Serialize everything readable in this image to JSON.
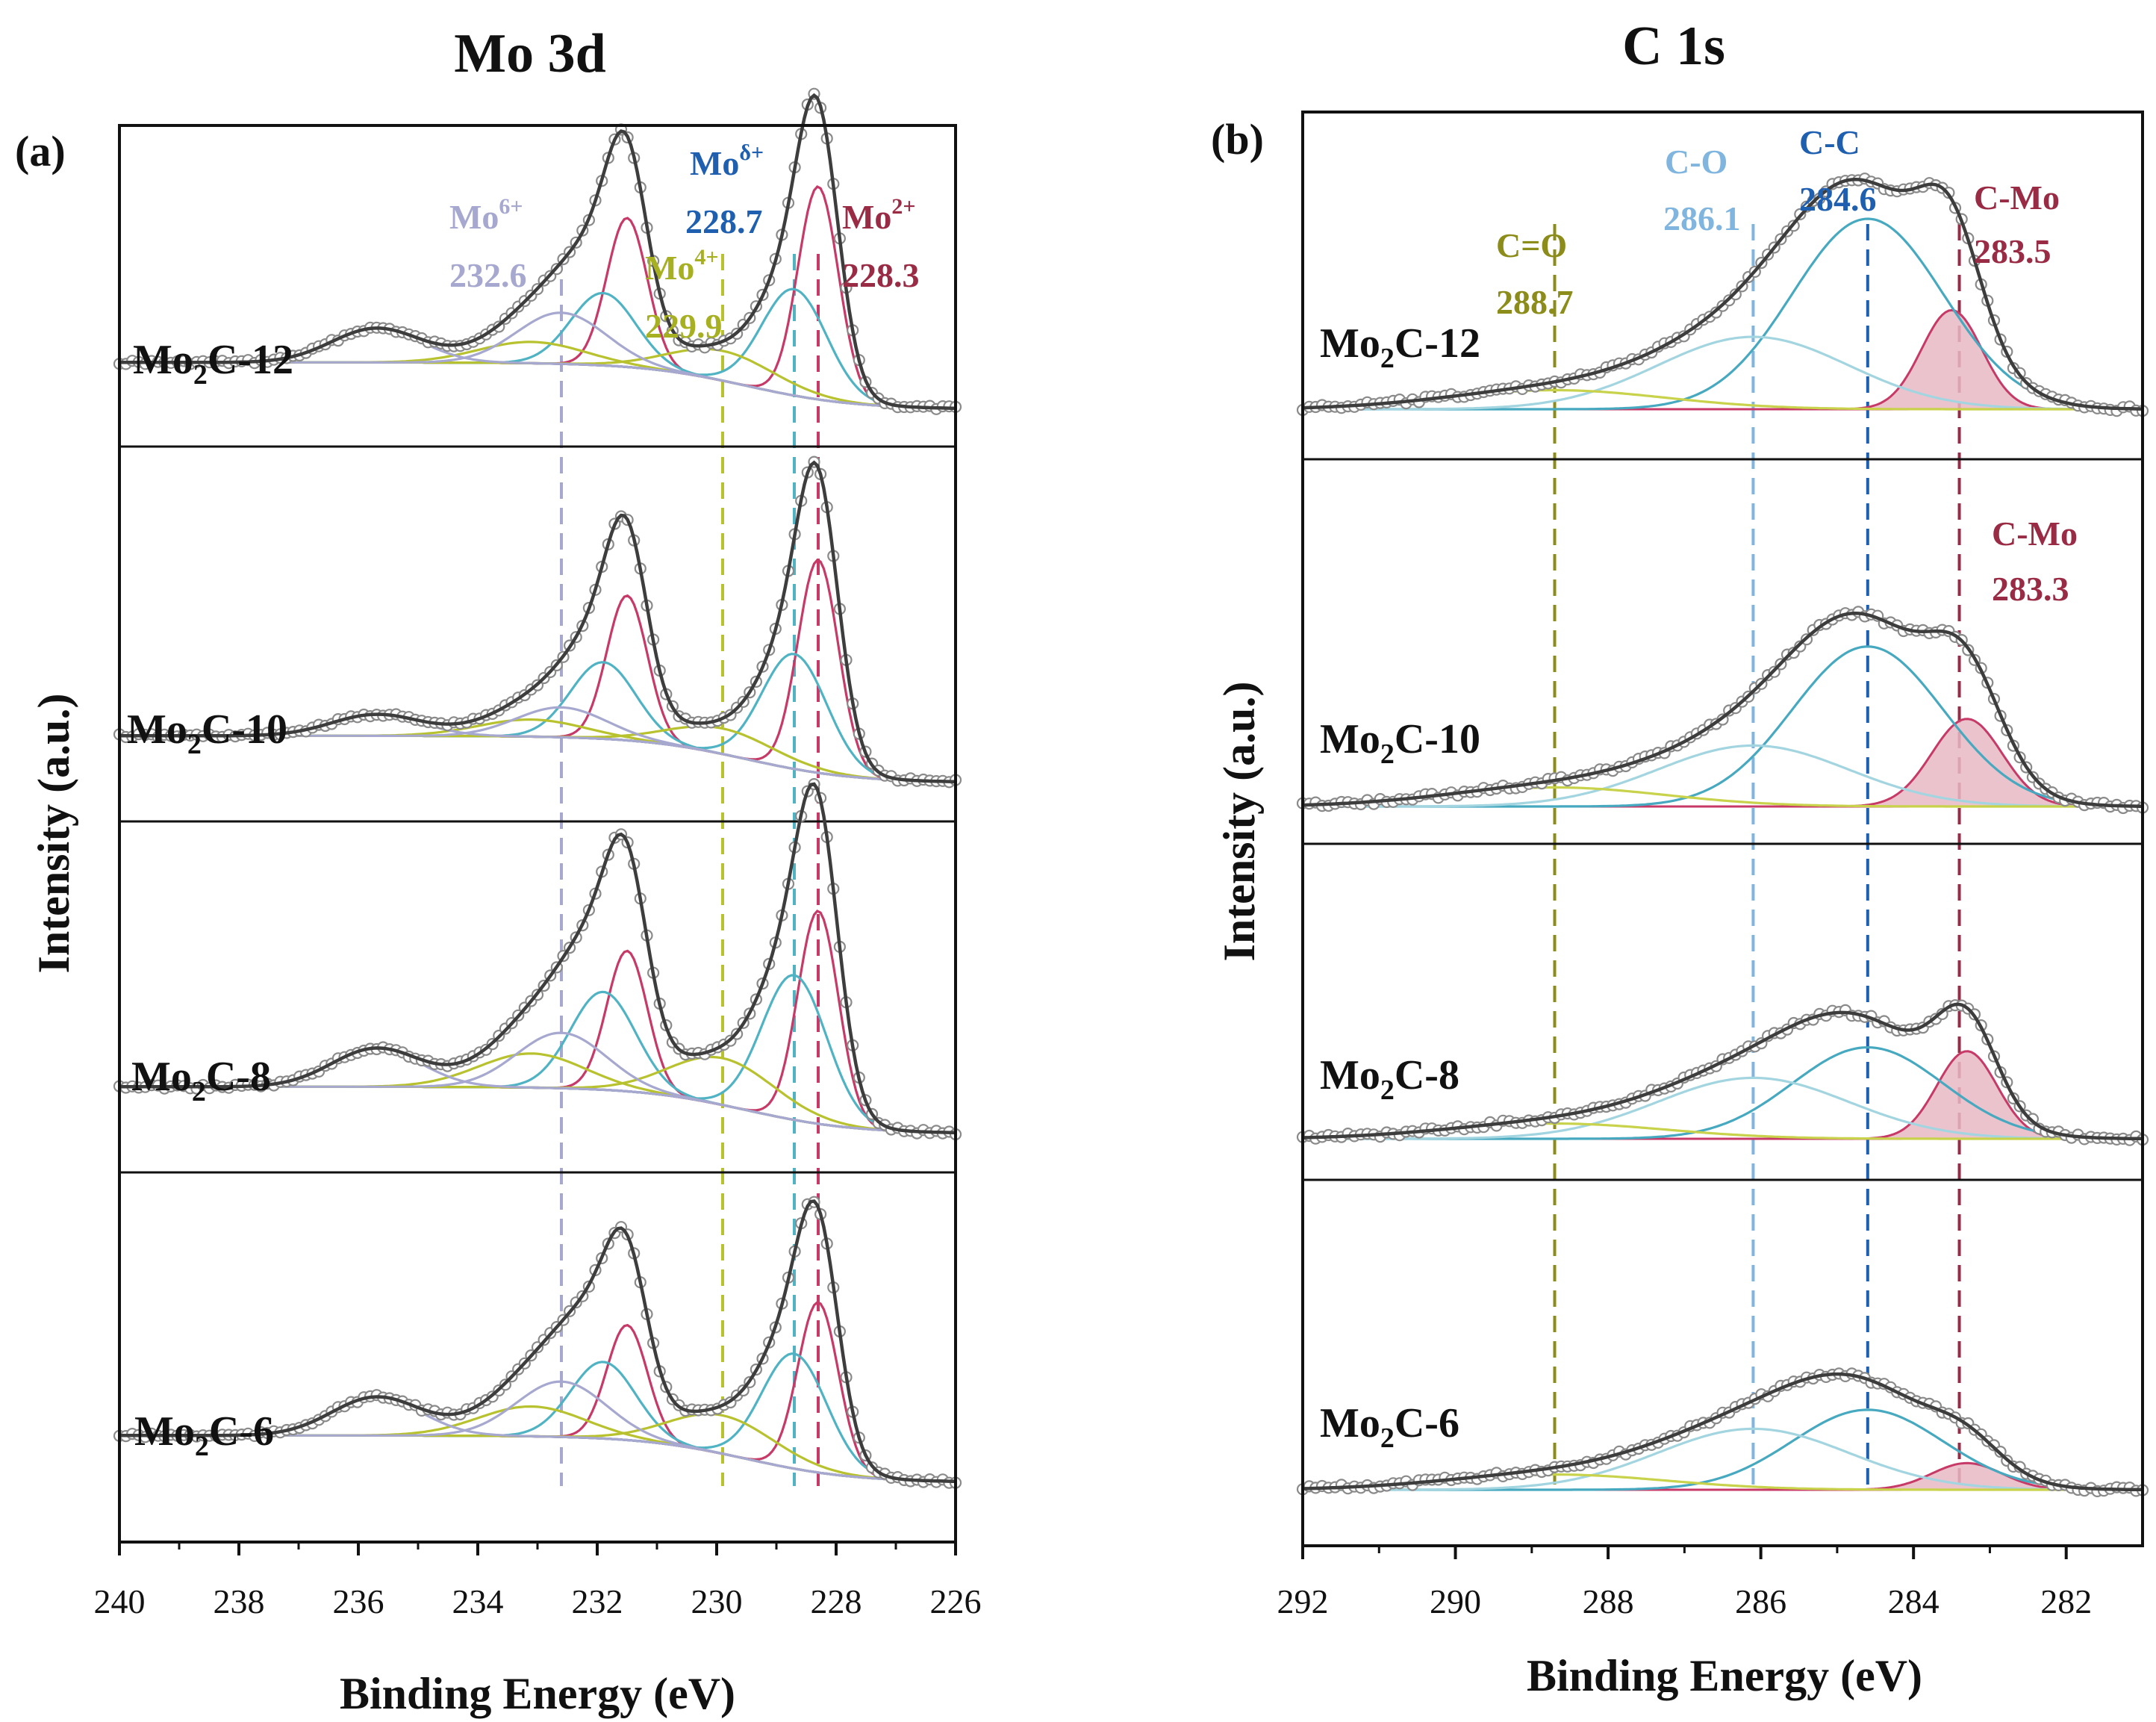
{
  "figure": {
    "colors": {
      "envelope": "#3d3d3d",
      "baseline": "#555555",
      "raw_points": "#8a8a8a",
      "mo6": "#a6a8cf",
      "mo4": "#b8c22e",
      "mo_delta": "#4fb3c4",
      "mo2": "#c73a68",
      "c_o_label": "#7fb5de",
      "c_c_label": "#1f5fb0",
      "c_mo_label": "#9a2b45",
      "c_eq_o_label": "#8c8c1a",
      "c_mo_fill": "#e7b9c4",
      "c_c_line": "#46a9c0",
      "c_o_line": "#a3d5e0",
      "c_eq_o_line": "#c8d24a",
      "baseline_b": "#8fb9e0"
    }
  },
  "chart_data": [
    {
      "panel": "(a)",
      "type": "line",
      "title": "Mo 3d",
      "xlabel": "Binding Energy (eV)",
      "ylabel": "Intensity (a.u.)",
      "xlim": [
        240,
        226
      ],
      "x_reversed": true,
      "x_ticks": [
        240,
        238,
        236,
        234,
        232,
        230,
        228,
        226
      ],
      "samples": [
        {
          "label_main": "Mo",
          "label_sub": "2",
          "label_rest": "C-12",
          "peaks": [
            {
              "name": "Mo2+ 3d5/2",
              "center": 228.3,
              "height": 100,
              "fwhm": 0.5,
              "color_key": "mo2"
            },
            {
              "name": "Mo2+ 3d3/2",
              "center": 231.5,
              "height": 70,
              "fwhm": 0.5,
              "color_key": "mo2"
            },
            {
              "name": "Moδ+ 3d5/2",
              "center": 228.7,
              "height": 50,
              "fwhm": 0.8,
              "color_key": "mo_delta"
            },
            {
              "name": "Moδ+ 3d3/2",
              "center": 231.9,
              "height": 34,
              "fwhm": 0.8,
              "color_key": "mo_delta"
            },
            {
              "name": "Mo4+ 3d5/2",
              "center": 229.9,
              "height": 14,
              "fwhm": 1.3,
              "color_key": "mo4"
            },
            {
              "name": "Mo4+ 3d3/2",
              "center": 233.1,
              "height": 10,
              "fwhm": 1.3,
              "color_key": "mo4"
            },
            {
              "name": "Mo6+ 3d5/2",
              "center": 232.6,
              "height": 24,
              "fwhm": 1.1,
              "color_key": "mo6"
            },
            {
              "name": "Mo6+ 3d3/2",
              "center": 235.7,
              "height": 16,
              "fwhm": 1.1,
              "color_key": "mo6"
            }
          ]
        },
        {
          "label_main": "Mo",
          "label_sub": "2",
          "label_rest": "C-10",
          "peaks": [
            {
              "name": "Mo2+ 3d5/2",
              "center": 228.3,
              "height": 100,
              "fwhm": 0.5,
              "color_key": "mo2"
            },
            {
              "name": "Mo2+ 3d3/2",
              "center": 231.5,
              "height": 68,
              "fwhm": 0.5,
              "color_key": "mo2"
            },
            {
              "name": "Moδ+ 3d5/2",
              "center": 228.7,
              "height": 54,
              "fwhm": 0.8,
              "color_key": "mo_delta"
            },
            {
              "name": "Moδ+ 3d3/2",
              "center": 231.9,
              "height": 36,
              "fwhm": 0.8,
              "color_key": "mo_delta"
            },
            {
              "name": "Mo4+ 3d5/2",
              "center": 229.9,
              "height": 12,
              "fwhm": 1.3,
              "color_key": "mo4"
            },
            {
              "name": "Mo4+ 3d3/2",
              "center": 233.1,
              "height": 8,
              "fwhm": 1.3,
              "color_key": "mo4"
            },
            {
              "name": "Mo6+ 3d5/2",
              "center": 232.6,
              "height": 14,
              "fwhm": 1.1,
              "color_key": "mo6"
            },
            {
              "name": "Mo6+ 3d3/2",
              "center": 235.7,
              "height": 10,
              "fwhm": 1.1,
              "color_key": "mo6"
            }
          ]
        },
        {
          "label_main": "Mo",
          "label_sub": "2",
          "label_rest": "C-8",
          "peaks": [
            {
              "name": "Mo2+ 3d5/2",
              "center": 228.3,
              "height": 100,
              "fwhm": 0.5,
              "color_key": "mo2"
            },
            {
              "name": "Mo2+ 3d3/2",
              "center": 231.5,
              "height": 66,
              "fwhm": 0.5,
              "color_key": "mo2"
            },
            {
              "name": "Moδ+ 3d5/2",
              "center": 228.7,
              "height": 68,
              "fwhm": 0.8,
              "color_key": "mo_delta"
            },
            {
              "name": "Moδ+ 3d3/2",
              "center": 231.9,
              "height": 46,
              "fwhm": 0.8,
              "color_key": "mo_delta"
            },
            {
              "name": "Mo4+ 3d5/2",
              "center": 229.9,
              "height": 22,
              "fwhm": 1.3,
              "color_key": "mo4"
            },
            {
              "name": "Mo4+ 3d3/2",
              "center": 233.1,
              "height": 16,
              "fwhm": 1.3,
              "color_key": "mo4"
            },
            {
              "name": "Mo6+ 3d5/2",
              "center": 232.6,
              "height": 26,
              "fwhm": 1.1,
              "color_key": "mo6"
            },
            {
              "name": "Mo6+ 3d3/2",
              "center": 235.7,
              "height": 18,
              "fwhm": 1.1,
              "color_key": "mo6"
            }
          ]
        },
        {
          "label_main": "Mo",
          "label_sub": "2",
          "label_rest": "C-6",
          "peaks": [
            {
              "name": "Mo2+ 3d5/2",
              "center": 228.3,
              "height": 80,
              "fwhm": 0.5,
              "color_key": "mo2"
            },
            {
              "name": "Mo2+ 3d3/2",
              "center": 231.5,
              "height": 54,
              "fwhm": 0.5,
              "color_key": "mo2"
            },
            {
              "name": "Moδ+ 3d5/2",
              "center": 228.7,
              "height": 54,
              "fwhm": 0.8,
              "color_key": "mo_delta"
            },
            {
              "name": "Moδ+ 3d3/2",
              "center": 231.9,
              "height": 36,
              "fwhm": 0.8,
              "color_key": "mo_delta"
            },
            {
              "name": "Mo4+ 3d5/2",
              "center": 229.9,
              "height": 18,
              "fwhm": 1.3,
              "color_key": "mo4"
            },
            {
              "name": "Mo4+ 3d3/2",
              "center": 233.1,
              "height": 14,
              "fwhm": 1.3,
              "color_key": "mo4"
            },
            {
              "name": "Mo6+ 3d5/2",
              "center": 232.6,
              "height": 26,
              "fwhm": 1.1,
              "color_key": "mo6"
            },
            {
              "name": "Mo6+ 3d3/2",
              "center": 235.7,
              "height": 18,
              "fwhm": 1.1,
              "color_key": "mo6"
            }
          ]
        }
      ],
      "reference_lines": [
        {
          "position": 232.6,
          "color_key": "mo6"
        },
        {
          "position": 229.9,
          "color_key": "mo4"
        },
        {
          "position": 228.7,
          "color_key": "mo_delta"
        },
        {
          "position": 228.3,
          "color_key": "mo2"
        }
      ],
      "annotations": [
        {
          "name": "Mo",
          "sup": "6+",
          "value": "232.6",
          "color_key": "mo6"
        },
        {
          "name": "Mo",
          "sup": "4+",
          "value": "229.9",
          "color_key": "mo4"
        },
        {
          "name": "Mo",
          "sup": "δ+",
          "value": "228.7",
          "color_key": "mo_delta"
        },
        {
          "name": "Mo",
          "sup": "2+",
          "value": "228.3",
          "color_key": "mo2"
        }
      ]
    },
    {
      "panel": "(b)",
      "type": "line",
      "title": "C 1s",
      "xlabel": "Binding Energy (eV)",
      "ylabel": "Intensity (a.u.)",
      "xlim": [
        292,
        281
      ],
      "x_reversed": true,
      "x_ticks": [
        292,
        290,
        288,
        286,
        284,
        282
      ],
      "samples": [
        {
          "label_main": "Mo",
          "label_sub": "2",
          "label_rest": "C-12",
          "peaks": [
            {
              "name": "C-Mo",
              "center": 283.5,
              "height": 52,
              "fwhm": 0.6,
              "color_key": "c_mo_fill"
            },
            {
              "name": "C-C",
              "center": 284.6,
              "height": 100,
              "fwhm": 1.5,
              "color_key": "c_c_line"
            },
            {
              "name": "C-O",
              "center": 286.1,
              "height": 38,
              "fwhm": 1.9,
              "color_key": "c_o_line"
            },
            {
              "name": "C=O",
              "center": 288.7,
              "height": 10,
              "fwhm": 2.2,
              "color_key": "c_eq_o_line"
            }
          ]
        },
        {
          "label_main": "Mo",
          "label_sub": "2",
          "label_rest": "C-10",
          "peaks": [
            {
              "name": "C-Mo",
              "center": 283.3,
              "height": 46,
              "fwhm": 0.7,
              "color_key": "c_mo_fill"
            },
            {
              "name": "C-C",
              "center": 284.6,
              "height": 84,
              "fwhm": 1.5,
              "color_key": "c_c_line"
            },
            {
              "name": "C-O",
              "center": 286.1,
              "height": 32,
              "fwhm": 1.9,
              "color_key": "c_o_line"
            },
            {
              "name": "C=O",
              "center": 288.7,
              "height": 10,
              "fwhm": 2.2,
              "color_key": "c_eq_o_line"
            }
          ]
        },
        {
          "label_main": "Mo",
          "label_sub": "2",
          "label_rest": "C-8",
          "peaks": [
            {
              "name": "C-Mo",
              "center": 283.3,
              "height": 46,
              "fwhm": 0.6,
              "color_key": "c_mo_fill"
            },
            {
              "name": "C-C",
              "center": 284.6,
              "height": 48,
              "fwhm": 1.5,
              "color_key": "c_c_line"
            },
            {
              "name": "C-O",
              "center": 286.1,
              "height": 32,
              "fwhm": 1.9,
              "color_key": "c_o_line"
            },
            {
              "name": "C=O",
              "center": 288.7,
              "height": 8,
              "fwhm": 2.2,
              "color_key": "c_eq_o_line"
            }
          ]
        },
        {
          "label_main": "Mo",
          "label_sub": "2",
          "label_rest": "C-6",
          "peaks": [
            {
              "name": "C-Mo",
              "center": 283.3,
              "height": 14,
              "fwhm": 0.7,
              "color_key": "c_mo_fill"
            },
            {
              "name": "C-C",
              "center": 284.6,
              "height": 42,
              "fwhm": 1.5,
              "color_key": "c_c_line"
            },
            {
              "name": "C-O",
              "center": 286.1,
              "height": 32,
              "fwhm": 1.9,
              "color_key": "c_o_line"
            },
            {
              "name": "C=O",
              "center": 288.7,
              "height": 8,
              "fwhm": 2.2,
              "color_key": "c_eq_o_line"
            }
          ]
        }
      ],
      "reference_lines": [
        {
          "position": 288.7,
          "color_key": "c_eq_o_label"
        },
        {
          "position": 286.1,
          "color_key": "c_o_label"
        },
        {
          "position": 284.6,
          "color_key": "c_c_label"
        },
        {
          "position": 283.4,
          "color_key": "c_mo_label"
        }
      ],
      "annotations": [
        {
          "name": "C=O",
          "value": "288.7",
          "color_key": "c_eq_o_label"
        },
        {
          "name": "C-O",
          "value": "286.1",
          "color_key": "c_o_label"
        },
        {
          "name": "C-C",
          "value": "284.6",
          "color_key": "c_c_label"
        },
        {
          "name": "C-Mo",
          "value": "283.5",
          "color_key": "c_mo_label"
        },
        {
          "name": "C-Mo",
          "value": "283.3",
          "color_key": "c_mo_label"
        }
      ]
    }
  ]
}
